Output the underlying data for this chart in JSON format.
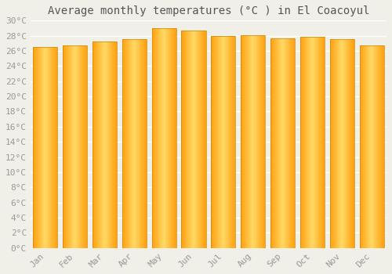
{
  "title": "Average monthly temperatures (°C ) in El Coacoyul",
  "months": [
    "Jan",
    "Feb",
    "Mar",
    "Apr",
    "May",
    "Jun",
    "Jul",
    "Aug",
    "Sep",
    "Oct",
    "Nov",
    "Dec"
  ],
  "values": [
    26.5,
    26.7,
    27.2,
    27.6,
    29.0,
    28.7,
    28.0,
    28.1,
    27.7,
    27.9,
    27.5,
    26.7
  ],
  "bar_color_center": "#FFD966",
  "bar_color_edge": "#FFA010",
  "bar_outline_color": "#CC8800",
  "background_color": "#F0F0E8",
  "grid_color": "#FFFFFF",
  "ylim": [
    0,
    30
  ],
  "ytick_step": 2,
  "title_fontsize": 10,
  "tick_fontsize": 8,
  "tick_color": "#999999",
  "title_color": "#555555",
  "font_family": "monospace"
}
